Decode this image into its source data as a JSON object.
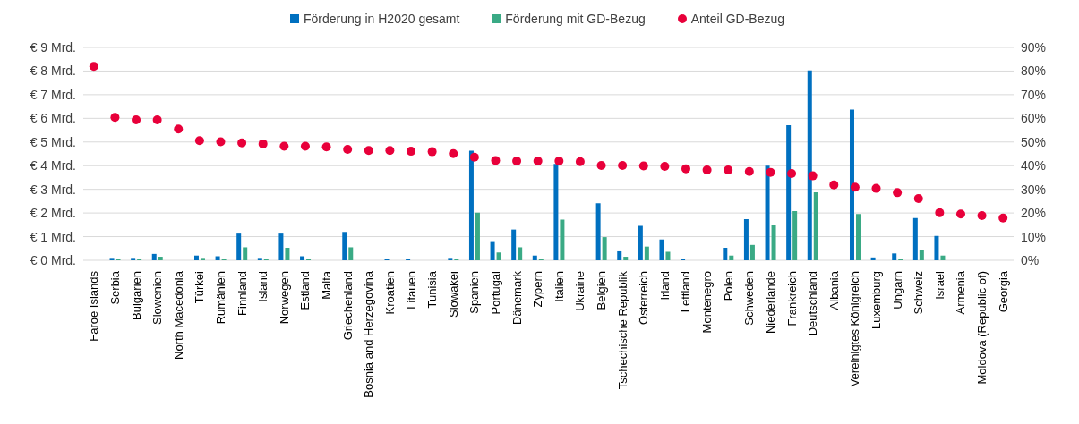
{
  "chart_data": {
    "type": "bar",
    "categories": [
      "Faroe Islands",
      "Serbia",
      "Bulgarien",
      "Slowenien",
      "North Macedonia",
      "Türkei",
      "Rumänien",
      "Finnland",
      "Island",
      "Norwegen",
      "Estland",
      "Malta",
      "Griechenland",
      "Bosnia and Herzegovina",
      "Kroatien",
      "Litauen",
      "Tunisia",
      "Slowakei",
      "Spanien",
      "Portugal",
      "Dänemark",
      "Zypern",
      "Italien",
      "Ukraine",
      "Belgien",
      "Tschechische Republik",
      "Österreich",
      "Irland",
      "Lettland",
      "Montenegro",
      "Polen",
      "Schweden",
      "Niederlande",
      "Frankreich",
      "Deutschland",
      "Albania",
      "Vereinigtes Königreich",
      "Luxemburg",
      "Ungarn",
      "Schweiz",
      "Israel",
      "Armenia",
      "Moldova (Republic of)",
      "Georgia"
    ],
    "series": [
      {
        "name": "Förderung in H2020 gesamt",
        "color": "#0070c0",
        "values": [
          null,
          0.1,
          0.1,
          0.27,
          null,
          0.2,
          0.17,
          1.13,
          0.1,
          1.13,
          0.17,
          null,
          1.2,
          null,
          0.06,
          0.06,
          null,
          0.1,
          4.63,
          0.81,
          1.3,
          0.2,
          4.07,
          null,
          2.41,
          0.38,
          1.46,
          0.88,
          0.07,
          null,
          0.53,
          1.74,
          4.0,
          5.71,
          8.03,
          null,
          6.37,
          0.12,
          0.29,
          1.79,
          1.03,
          null,
          null,
          null
        ]
      },
      {
        "name": "Förderung mit GD-Bezug",
        "color": "#3aaa85",
        "values": [
          null,
          0.04,
          0.06,
          0.15,
          null,
          0.1,
          0.07,
          0.55,
          0.06,
          0.53,
          0.07,
          null,
          0.55,
          null,
          null,
          null,
          null,
          0.06,
          2.01,
          0.33,
          0.55,
          0.07,
          1.72,
          null,
          0.98,
          0.15,
          0.58,
          0.36,
          null,
          null,
          0.2,
          0.65,
          1.5,
          2.08,
          2.87,
          null,
          1.96,
          null,
          0.07,
          0.45,
          0.2,
          null,
          null,
          null
        ]
      },
      {
        "name": "Anteil GD-Bezug",
        "type": "scatter",
        "axis": "y2",
        "color": "#e8003a",
        "values": [
          82,
          60.4,
          59.4,
          59.4,
          55.5,
          50.6,
          50.1,
          49.6,
          49.2,
          48.2,
          48.2,
          47.9,
          46.9,
          46.4,
          46.4,
          46.1,
          45.9,
          45.1,
          43.6,
          42.2,
          42.0,
          42.0,
          42.0,
          41.7,
          40.1,
          40.1,
          39.9,
          39.7,
          38.7,
          38.2,
          38.2,
          37.5,
          37.2,
          36.7,
          35.7,
          31.9,
          30.9,
          30.4,
          28.6,
          26.1,
          20.1,
          19.6,
          18.9,
          17.9
        ]
      }
    ],
    "ylim": [
      0,
      9
    ],
    "yticks": [
      {
        "value": 0,
        "label": "€ 0 Mrd."
      },
      {
        "value": 1,
        "label": "€ 1 Mrd."
      },
      {
        "value": 2,
        "label": "€ 2 Mrd."
      },
      {
        "value": 3,
        "label": "€ 3 Mrd."
      },
      {
        "value": 4,
        "label": "€ 4 Mrd."
      },
      {
        "value": 5,
        "label": "€ 5 Mrd."
      },
      {
        "value": 6,
        "label": "€ 6 Mrd."
      },
      {
        "value": 7,
        "label": "€ 7 Mrd."
      },
      {
        "value": 8,
        "label": "€ 8 Mrd."
      },
      {
        "value": 9,
        "label": "€ 9 Mrd."
      }
    ],
    "y2lim": [
      0,
      90
    ],
    "y2ticks": [
      {
        "value": 0,
        "label": "0%"
      },
      {
        "value": 10,
        "label": "10%"
      },
      {
        "value": 20,
        "label": "20%"
      },
      {
        "value": 30,
        "label": "30%"
      },
      {
        "value": 40,
        "label": "40%"
      },
      {
        "value": 50,
        "label": "50%"
      },
      {
        "value": 60,
        "label": "60%"
      },
      {
        "value": 70,
        "label": "70%"
      },
      {
        "value": 80,
        "label": "80%"
      },
      {
        "value": 90,
        "label": "90%"
      }
    ],
    "grid": "y",
    "legend": "top",
    "marker": "circle"
  }
}
